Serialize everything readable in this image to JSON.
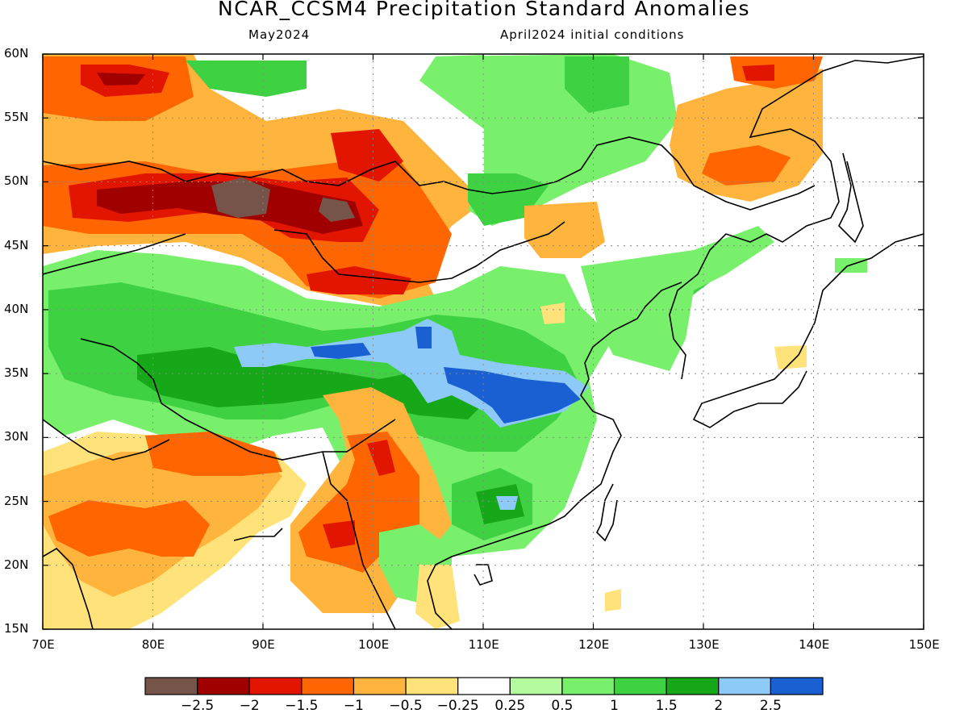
{
  "title": "NCAR_CCSM4 Precipitation Standard Anomalies",
  "subtitle_left": "May2024",
  "subtitle_right": "April2024 initial conditions",
  "map": {
    "lon_range": [
      70,
      150
    ],
    "lat_range": [
      15,
      60
    ],
    "lon_ticks": [
      "70E",
      "80E",
      "90E",
      "100E",
      "110E",
      "120E",
      "130E",
      "140E",
      "150E"
    ],
    "lat_ticks": [
      "60N",
      "55N",
      "50N",
      "45N",
      "40N",
      "35N",
      "30N",
      "25N",
      "20N",
      "15N"
    ],
    "grid": true,
    "grid_lines_lon": [
      80,
      90,
      100,
      110,
      120,
      130,
      140
    ],
    "grid_lines_lat": [
      20,
      25,
      30,
      35,
      40,
      45,
      50,
      55
    ]
  },
  "colorbar": {
    "colors": [
      "#765449",
      "#a10000",
      "#e11500",
      "#ff6500",
      "#ffb43d",
      "#ffe27a",
      "#ffffff",
      "#b4fa9f",
      "#79f06c",
      "#3ed142",
      "#17a819",
      "#8dcaf7",
      "#1a60d2"
    ],
    "labels": [
      "−2.5",
      "−2",
      "−1.5",
      "−1",
      "−0.5",
      "−0.25",
      "0.25",
      "0.5",
      "1",
      "1.5",
      "2",
      "2.5"
    ]
  },
  "anomaly_regions": [
    {
      "label": "west-siberia-dry",
      "level": -1,
      "center": [
        84,
        54
      ],
      "radius": [
        12,
        4
      ]
    },
    {
      "label": "north-kazakh-dry",
      "level": -1.5,
      "center": [
        77,
        57.5
      ],
      "radius": [
        6,
        2.5
      ]
    },
    {
      "label": "kazakh-band-dry",
      "level": -1.5,
      "center": [
        88,
        48
      ],
      "radius": [
        17,
        4
      ]
    },
    {
      "label": "altai-very-dry",
      "level": -2.5,
      "center": [
        89,
        48.5
      ],
      "radius": [
        4,
        1.5
      ]
    },
    {
      "label": "mongolia-dry",
      "level": -2,
      "center": [
        96,
        48
      ],
      "radius": [
        6,
        2
      ]
    },
    {
      "label": "south-mongolia-dry",
      "level": -1.5,
      "center": [
        100,
        42
      ],
      "radius": [
        5,
        1.5
      ]
    },
    {
      "label": "northeast-dry",
      "level": -1,
      "center": [
        132,
        50
      ],
      "radius": [
        10,
        3
      ]
    },
    {
      "label": "beijing-dry",
      "level": -1,
      "center": [
        117,
        46.5
      ],
      "radius": [
        3,
        2
      ]
    },
    {
      "label": "tibet-wet",
      "level": 1.5,
      "center": [
        95,
        33
      ],
      "radius": [
        16,
        4.5
      ]
    },
    {
      "label": "qinghai-very-wet",
      "level": 2,
      "center": [
        98,
        36
      ],
      "radius": [
        5,
        1.2
      ]
    },
    {
      "label": "yangtze-very-wet",
      "level": 2.5,
      "center": [
        115,
        33.5
      ],
      "radius": [
        4,
        2
      ]
    },
    {
      "label": "south-china-wet",
      "level": 1.5,
      "center": [
        113,
        24
      ],
      "radius": [
        5,
        2.5
      ]
    },
    {
      "label": "india-dry",
      "level": -0.5,
      "center": [
        80,
        23
      ],
      "radius": [
        10,
        7
      ]
    },
    {
      "label": "yunnan-dry",
      "level": -1.5,
      "center": [
        99,
        25
      ],
      "radius": [
        4,
        5
      ]
    }
  ]
}
